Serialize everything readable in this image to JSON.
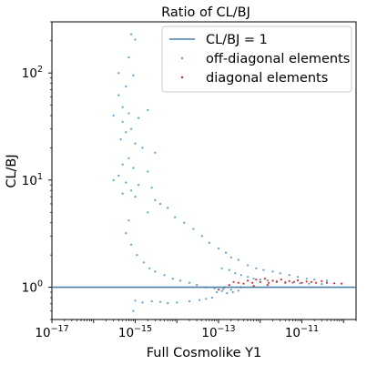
{
  "chart_data": {
    "type": "scatter",
    "title": "Ratio of CL/BJ",
    "xlabel": "Full Cosmolike Y1",
    "ylabel": "CL/BJ",
    "x_scale": "log",
    "y_scale": "log",
    "xlim": [
      1e-17,
      2e-10
    ],
    "ylim": [
      0.5,
      300
    ],
    "x_ticks": [
      1e-17,
      1e-15,
      1e-13,
      1e-11
    ],
    "x_tick_labels": [
      {
        "base": "10",
        "exp": "−17"
      },
      {
        "base": "10",
        "exp": "−15"
      },
      {
        "base": "10",
        "exp": "−13"
      },
      {
        "base": "10",
        "exp": "−11"
      }
    ],
    "y_ticks": [
      1,
      10,
      100
    ],
    "y_tick_labels": [
      {
        "base": "10",
        "exp": "0"
      },
      {
        "base": "10",
        "exp": "1"
      },
      {
        "base": "10",
        "exp": "2"
      }
    ],
    "legend_position": "top-right",
    "reference_line": {
      "name": "CL/BJ = 1",
      "y": 1,
      "color": "#4a7fa8"
    },
    "series": [
      {
        "name": "off-diagonal elements",
        "color": "#5aa0cc",
        "points": [
          [
            8e-16,
            230
          ],
          [
            1e-15,
            205
          ],
          [
            7e-16,
            140
          ],
          [
            4e-16,
            100
          ],
          [
            9e-16,
            95
          ],
          [
            6e-16,
            75
          ],
          [
            4e-16,
            62
          ],
          [
            5e-16,
            48
          ],
          [
            7e-16,
            42
          ],
          [
            3e-16,
            40
          ],
          [
            1.2e-15,
            38
          ],
          [
            5e-16,
            35
          ],
          [
            2e-15,
            45
          ],
          [
            8e-16,
            30
          ],
          [
            6e-16,
            28
          ],
          [
            4.5e-16,
            24
          ],
          [
            1e-15,
            22
          ],
          [
            1.5e-15,
            20
          ],
          [
            3e-15,
            18
          ],
          [
            7e-16,
            16
          ],
          [
            5e-16,
            14
          ],
          [
            9e-16,
            13
          ],
          [
            2e-15,
            12
          ],
          [
            4e-16,
            11
          ],
          [
            3e-16,
            10
          ],
          [
            6e-16,
            9.5
          ],
          [
            1.2e-15,
            9
          ],
          [
            2.5e-15,
            8.5
          ],
          [
            8e-16,
            8
          ],
          [
            5e-16,
            7.5
          ],
          [
            1e-15,
            7
          ],
          [
            3e-15,
            6.5
          ],
          [
            4e-15,
            6
          ],
          [
            6e-15,
            5.5
          ],
          [
            2e-15,
            5
          ],
          [
            9e-15,
            4.5
          ],
          [
            1.5e-14,
            4
          ],
          [
            7e-16,
            4.2
          ],
          [
            2.5e-14,
            3.5
          ],
          [
            4e-14,
            3
          ],
          [
            6e-14,
            2.6
          ],
          [
            1e-13,
            2.3
          ],
          [
            1.5e-13,
            2.1
          ],
          [
            2e-13,
            1.9
          ],
          [
            3e-13,
            1.8
          ],
          [
            5e-13,
            1.6
          ],
          [
            8e-13,
            1.5
          ],
          [
            1.2e-12,
            1.45
          ],
          [
            2e-12,
            1.4
          ],
          [
            3e-12,
            1.35
          ],
          [
            5e-12,
            1.3
          ],
          [
            8e-12,
            1.25
          ],
          [
            1.3e-11,
            1.2
          ],
          [
            2e-11,
            1.18
          ],
          [
            4e-11,
            1.15
          ],
          [
            6e-16,
            3.2
          ],
          [
            8e-16,
            2.5
          ],
          [
            1.1e-15,
            2.0
          ],
          [
            1.6e-15,
            1.7
          ],
          [
            2.2e-15,
            1.5
          ],
          [
            3e-15,
            1.4
          ],
          [
            5e-15,
            1.3
          ],
          [
            8e-15,
            1.2
          ],
          [
            1.2e-14,
            1.15
          ],
          [
            2e-14,
            1.1
          ],
          [
            3e-14,
            1.05
          ],
          [
            5e-14,
            1.0
          ],
          [
            8e-14,
            0.98
          ],
          [
            1.3e-13,
            0.96
          ],
          [
            2e-13,
            0.95
          ],
          [
            1e-15,
            0.75
          ],
          [
            1.5e-15,
            0.72
          ],
          [
            2.5e-15,
            0.74
          ],
          [
            4e-15,
            0.73
          ],
          [
            6e-15,
            0.71
          ],
          [
            1e-14,
            0.72
          ],
          [
            2e-14,
            0.74
          ],
          [
            3.5e-14,
            0.76
          ],
          [
            5e-14,
            0.78
          ],
          [
            7e-14,
            0.8
          ],
          [
            9e-16,
            0.6
          ],
          [
            1.2e-13,
            1.5
          ],
          [
            1.8e-13,
            1.45
          ],
          [
            2.5e-13,
            1.35
          ],
          [
            3.5e-13,
            1.3
          ],
          [
            5e-13,
            1.25
          ],
          [
            7e-13,
            1.2
          ],
          [
            1e-12,
            1.18
          ],
          [
            1.5e-12,
            1.16
          ],
          [
            2.5e-12,
            1.14
          ],
          [
            4e-12,
            1.12
          ],
          [
            6e-12,
            1.1
          ],
          [
            9e-12,
            1.09
          ],
          [
            1.5e-11,
            1.08
          ],
          [
            3e-11,
            1.07
          ],
          [
            9e-14,
            0.9
          ],
          [
            1.2e-13,
            0.92
          ],
          [
            1.6e-13,
            0.88
          ],
          [
            2.2e-13,
            0.9
          ],
          [
            3e-13,
            0.93
          ]
        ]
      },
      {
        "name": "diagonal elements",
        "color": "#e0262e",
        "points": [
          [
            1e-13,
            0.95
          ],
          [
            1.4e-13,
            1.0
          ],
          [
            1.8e-13,
            1.05
          ],
          [
            2.3e-13,
            1.12
          ],
          [
            3e-13,
            1.1
          ],
          [
            4e-13,
            1.08
          ],
          [
            5e-13,
            1.15
          ],
          [
            6.5e-13,
            1.1
          ],
          [
            8e-13,
            1.18
          ],
          [
            1e-12,
            1.12
          ],
          [
            1.3e-12,
            1.2
          ],
          [
            1.6e-12,
            1.1
          ],
          [
            2e-12,
            1.15
          ],
          [
            2.5e-12,
            1.12
          ],
          [
            3.2e-12,
            1.18
          ],
          [
            4e-12,
            1.1
          ],
          [
            5e-12,
            1.14
          ],
          [
            6.5e-12,
            1.12
          ],
          [
            8e-12,
            1.16
          ],
          [
            1e-11,
            1.1
          ],
          [
            1.3e-11,
            1.13
          ],
          [
            1.7e-11,
            1.12
          ],
          [
            2.2e-11,
            1.1
          ],
          [
            3e-11,
            1.14
          ],
          [
            4e-11,
            1.1
          ],
          [
            6e-11,
            1.09
          ],
          [
            9e-11,
            1.08
          ],
          [
            3.5e-13,
            1.0
          ],
          [
            7e-13,
            1.03
          ],
          [
            1.5e-12,
            1.05
          ]
        ]
      }
    ]
  }
}
